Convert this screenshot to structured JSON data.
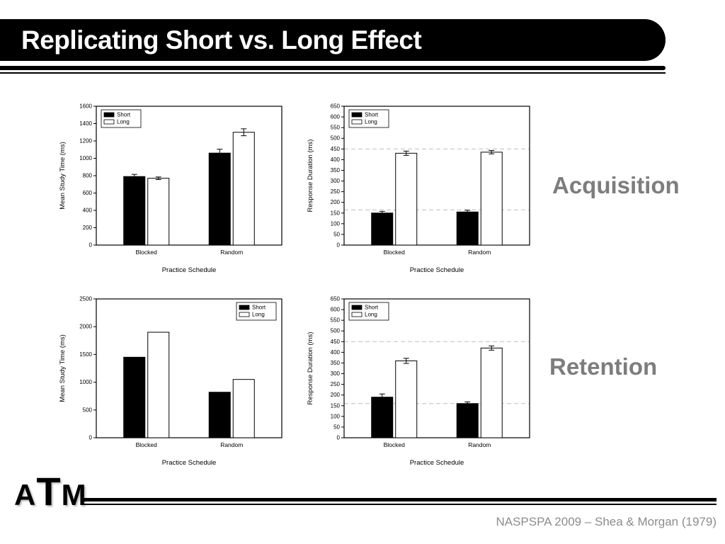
{
  "slide": {
    "title": "Replicating Short vs. Long Effect",
    "section_labels": [
      "Acquisition",
      "Retention"
    ],
    "logo_letters": [
      "A",
      "T",
      "M"
    ],
    "footer": "NASPSPA 2009 – Shea & Morgan (1979)",
    "colors": {
      "title_bar": "#000000",
      "title_text": "#ffffff",
      "section_label": "#7d7d7d",
      "footer_text": "#8c8c8c",
      "bar_short": "#000000",
      "bar_long": "#ffffff",
      "reference_line": "#bdbdbd"
    }
  },
  "chart_data": [
    {
      "id": "acquisition-mean-study-time",
      "type": "bar",
      "title": "",
      "xlabel": "Practice Schedule",
      "ylabel": "Mean Study Time (ms)",
      "categories": [
        "Blocked",
        "Random"
      ],
      "series": [
        {
          "name": "Short",
          "fill": "#000000",
          "values": [
            790,
            1060
          ],
          "errors": [
            25,
            45
          ]
        },
        {
          "name": "Long",
          "fill": "#ffffff",
          "values": [
            770,
            1300
          ],
          "errors": [
            15,
            40
          ]
        }
      ],
      "ylim": [
        0,
        1600
      ],
      "ytick_step": 200,
      "legend": "top-left",
      "ref_lines": []
    },
    {
      "id": "acquisition-response-duration",
      "type": "bar",
      "title": "",
      "xlabel": "Practice Schedule",
      "ylabel": "Response Duration (ms)",
      "categories": [
        "Blocked",
        "Random"
      ],
      "series": [
        {
          "name": "Short",
          "fill": "#000000",
          "values": [
            150,
            155
          ],
          "errors": [
            8,
            8
          ]
        },
        {
          "name": "Long",
          "fill": "#ffffff",
          "values": [
            430,
            435
          ],
          "errors": [
            10,
            8
          ]
        }
      ],
      "ylim": [
        0,
        650
      ],
      "ytick_step": 50,
      "legend": "top-left",
      "ref_lines": [
        450,
        165
      ]
    },
    {
      "id": "retention-mean-study-time",
      "type": "bar",
      "title": "",
      "xlabel": "Practice Schedule",
      "ylabel": "Mean Study Time (ms)",
      "categories": [
        "Blocked",
        "Random"
      ],
      "series": [
        {
          "name": "Short",
          "fill": "#000000",
          "values": [
            1450,
            820
          ],
          "errors": [
            0,
            0
          ]
        },
        {
          "name": "Long",
          "fill": "#ffffff",
          "values": [
            1900,
            1050
          ],
          "errors": [
            0,
            0
          ]
        }
      ],
      "ylim": [
        0,
        2500
      ],
      "ytick_step": 500,
      "legend": "top-right",
      "ref_lines": []
    },
    {
      "id": "retention-response-duration",
      "type": "bar",
      "title": "",
      "xlabel": "Practice Schedule",
      "ylabel": "Response Duration (ms)",
      "categories": [
        "Blocked",
        "Random"
      ],
      "series": [
        {
          "name": "Short",
          "fill": "#000000",
          "values": [
            190,
            160
          ],
          "errors": [
            15,
            8
          ]
        },
        {
          "name": "Long",
          "fill": "#ffffff",
          "values": [
            360,
            420
          ],
          "errors": [
            12,
            10
          ]
        }
      ],
      "ylim": [
        0,
        650
      ],
      "ytick_step": 50,
      "legend": "top-left",
      "ref_lines": [
        450,
        160
      ]
    }
  ]
}
